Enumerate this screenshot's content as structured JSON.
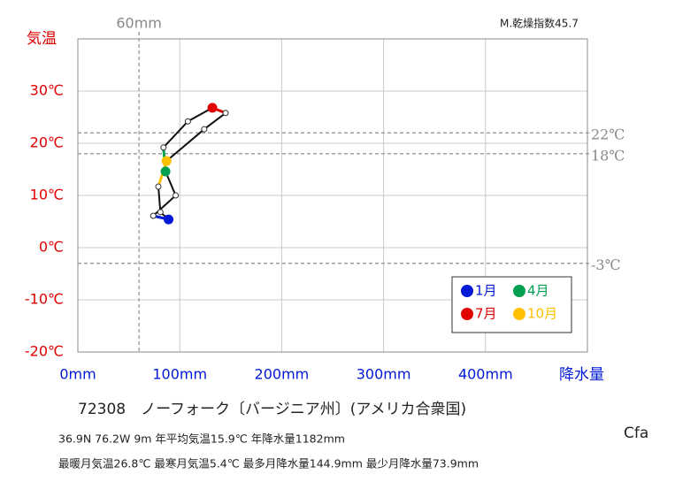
{
  "chart_data": {
    "type": "climograph",
    "title": "72308　ノーフォーク〔バージニア州〕(アメリカ合衆国)",
    "info_lines": [
      "36.9N  76.2W 9m  年平均気温15.9℃ 年降水量1182mm",
      "最暖月気温26.8℃ 最寒月気温5.4℃ 最多月降水量144.9mm 最少月降水量73.9mm"
    ],
    "climate_class": "Cfa",
    "dryness_index": "M.乾燥指数45.7",
    "ylabel": "気温",
    "xlabel": "降水量",
    "precipitation": [
      89,
      74,
      96,
      86,
      84,
      108,
      132,
      145,
      124,
      87,
      79,
      81
    ],
    "temperature": [
      5.4,
      6.1,
      10,
      14.6,
      19.2,
      24.2,
      26.8,
      25.8,
      22.7,
      16.6,
      11.7,
      6.8
    ],
    "colors": [
      "#0018d8",
      null,
      null,
      "#00a050",
      null,
      null,
      "#e00000",
      null,
      null,
      "#ffc000",
      null,
      null
    ],
    "legend": [
      {
        "name": "1月",
        "color": "#0018d8"
      },
      {
        "name": "4月",
        "color": "#00a050"
      },
      {
        "name": "7月",
        "color": "#e00000"
      },
      {
        "name": "10月",
        "color": "#ffc000"
      }
    ],
    "xlim": [
      0,
      500
    ],
    "ylim": [
      -20,
      40
    ],
    "xticks": [
      {
        "value": 0,
        "label": "0mm"
      },
      {
        "value": 100,
        "label": "100mm"
      },
      {
        "value": 200,
        "label": "200mm"
      },
      {
        "value": 300,
        "label": "300mm"
      },
      {
        "value": 400,
        "label": "400mm"
      }
    ],
    "yticks": [
      {
        "value": -20,
        "label": "-20℃"
      },
      {
        "value": -10,
        "label": "-10℃"
      },
      {
        "value": 0,
        "label": "0℃"
      },
      {
        "value": 10,
        "label": "10℃"
      },
      {
        "value": 20,
        "label": "20℃"
      },
      {
        "value": 30,
        "label": "30℃"
      }
    ],
    "ref_lines": [
      {
        "value": 22,
        "label": "22℃"
      },
      {
        "value": 18,
        "label": "18℃"
      },
      {
        "value": -3,
        "label": "-3℃"
      }
    ],
    "ref_x": {
      "value": 60,
      "label": "60mm"
    },
    "grid": true
  }
}
